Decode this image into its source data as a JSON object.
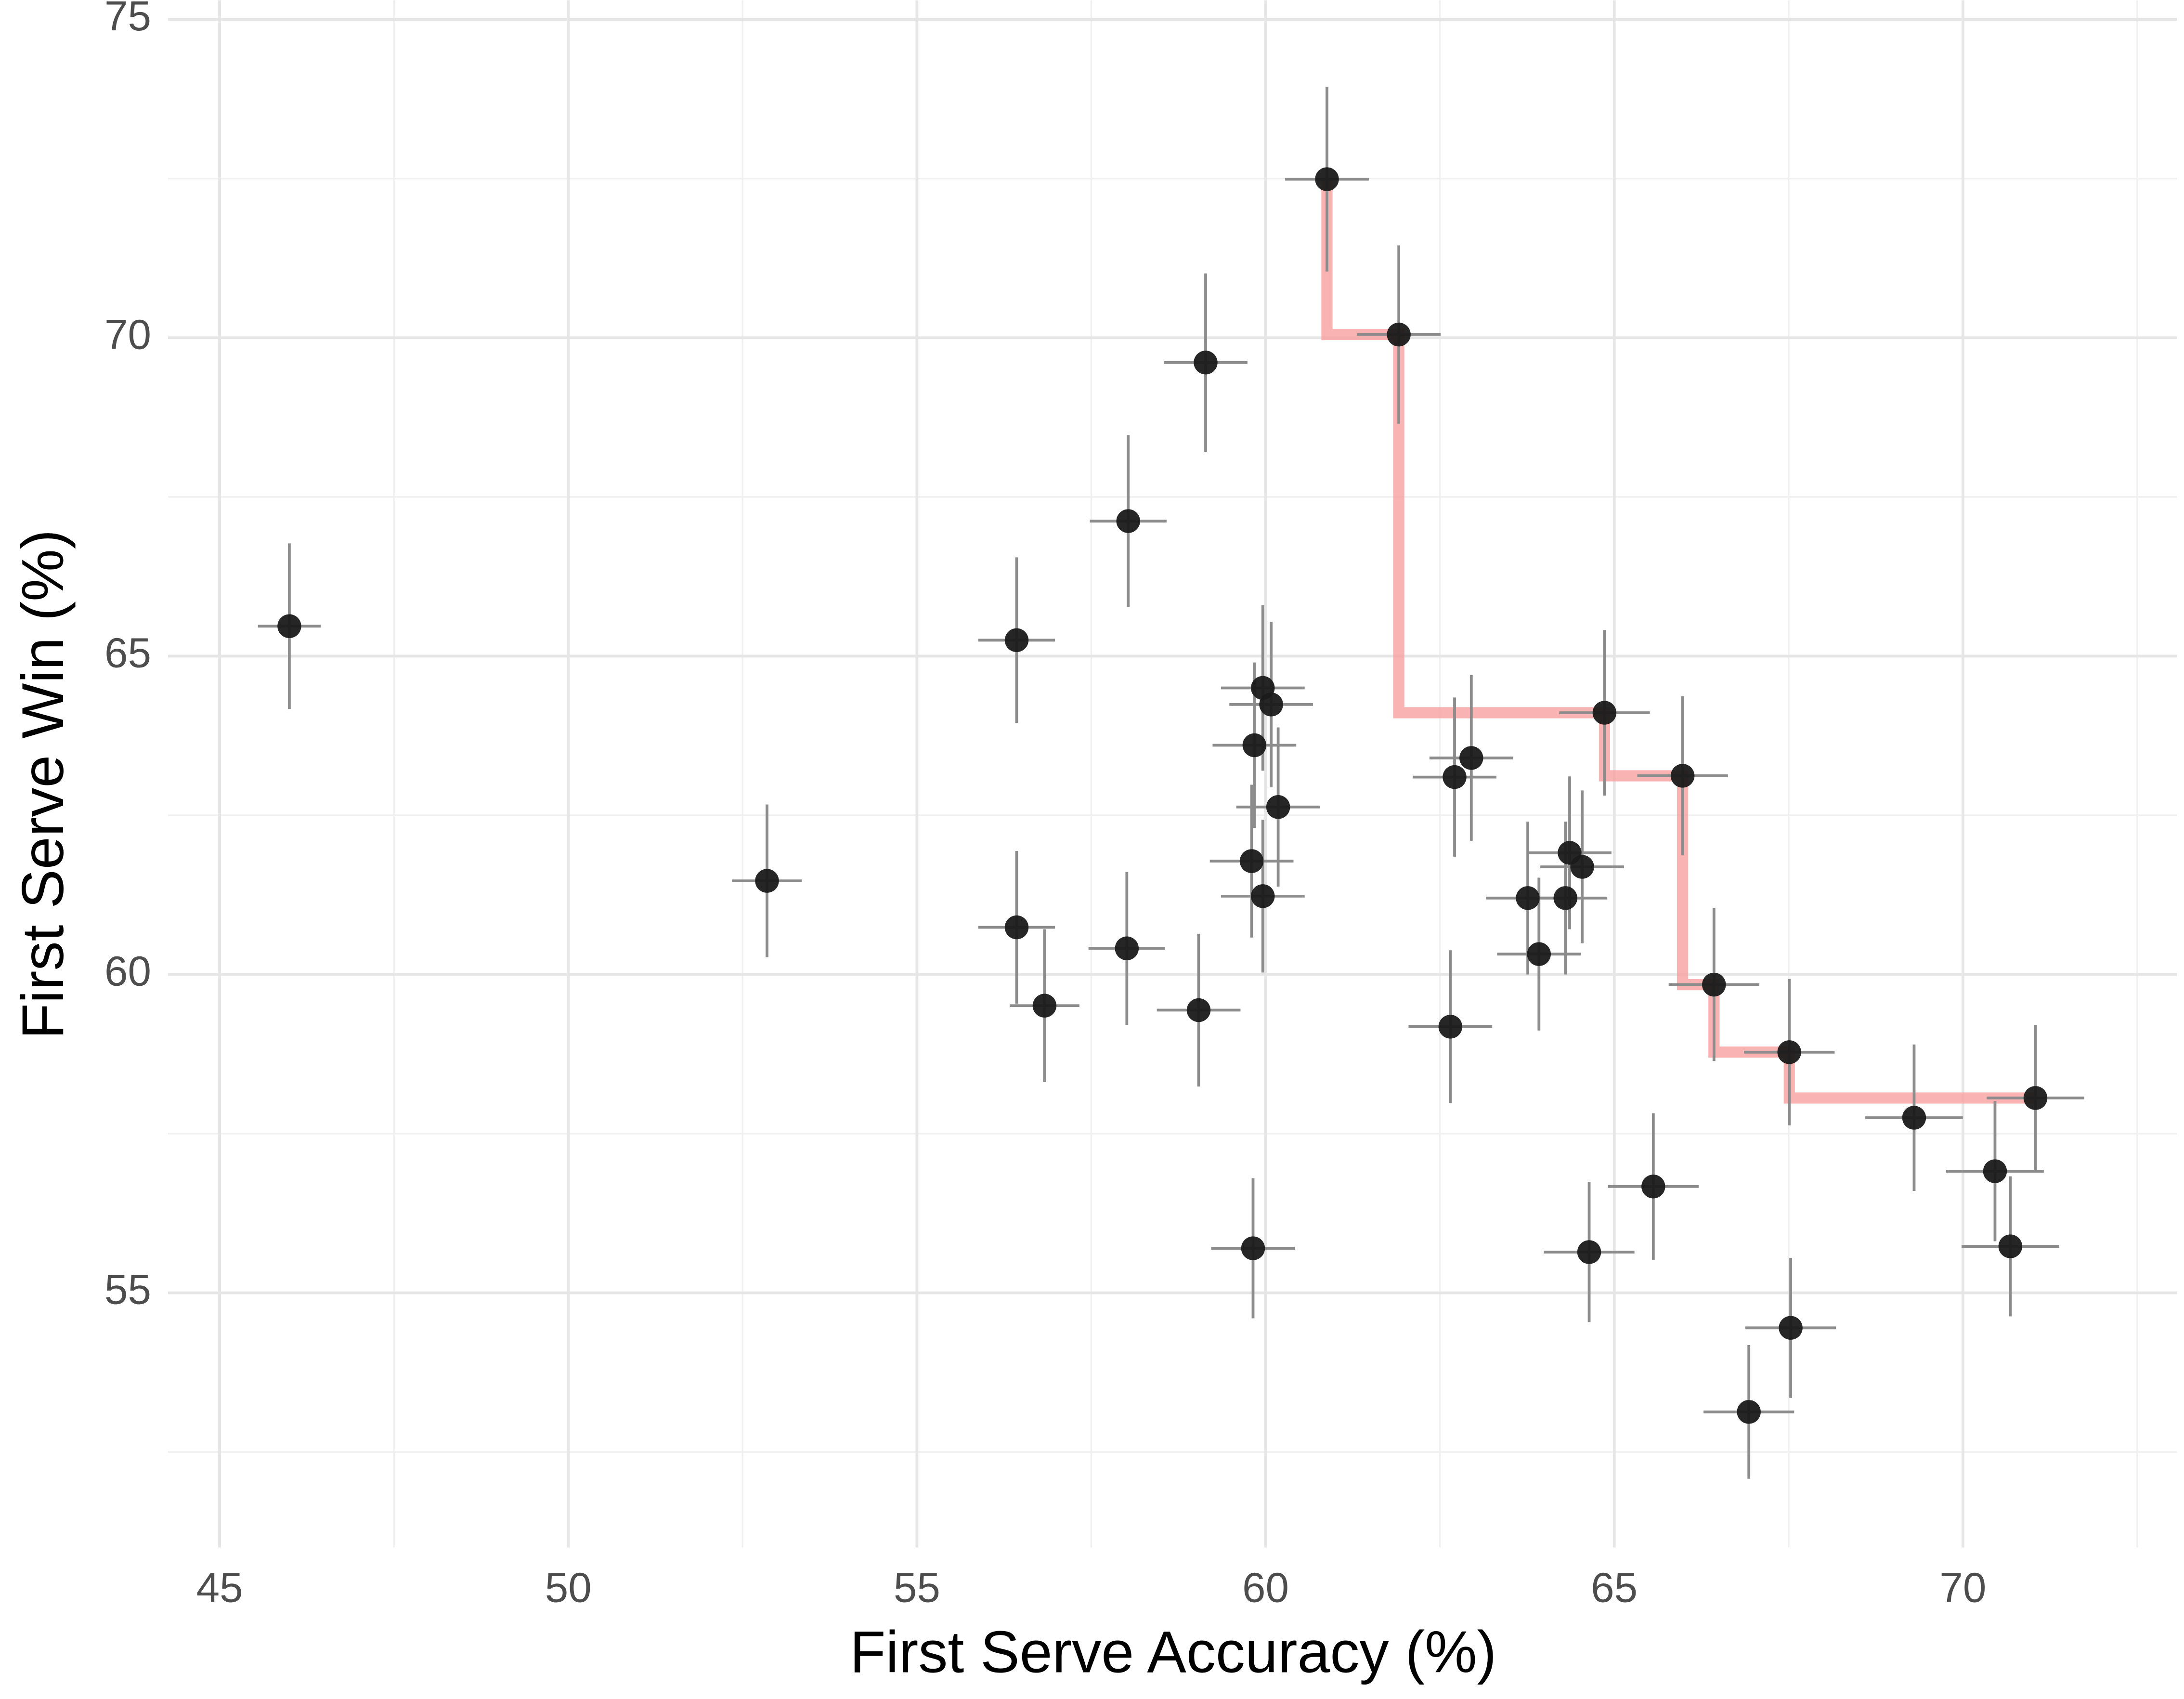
{
  "chart_data": {
    "type": "scatter",
    "x_label": "First Serve Accuracy (%)",
    "y_label": "First Serve Win (%)",
    "xlim": [
      44.26,
      73.07
    ],
    "ylim": [
      51.0,
      75.3
    ],
    "xticks": [
      45,
      50,
      55,
      60,
      65,
      70
    ],
    "yticks": [
      55,
      60,
      65,
      70,
      75
    ],
    "grid": true,
    "color": "#1a1a1a",
    "error_color": "#8c8c8c",
    "x": [
      46.0,
      52.85,
      56.43,
      56.43,
      56.83,
      58.03,
      58.01,
      59.14,
      59.04,
      59.82,
      59.96,
      60.08,
      59.84,
      60.18,
      59.8,
      59.96,
      60.88,
      61.91,
      62.65,
      62.71,
      62.95,
      63.76,
      63.92,
      64.3,
      64.36,
      64.54,
      64.86,
      64.64,
      65.56,
      65.98,
      66.43,
      66.93,
      67.51,
      67.53,
      69.3,
      70.46,
      70.68,
      71.04
    ],
    "y": [
      65.47,
      61.47,
      65.25,
      60.74,
      59.51,
      67.12,
      60.41,
      69.61,
      59.44,
      55.7,
      64.5,
      64.24,
      63.6,
      62.63,
      61.78,
      61.23,
      72.49,
      70.05,
      59.18,
      63.1,
      63.4,
      61.2,
      60.32,
      61.2,
      61.91,
      61.69,
      64.11,
      55.64,
      56.67,
      63.12,
      59.84,
      53.13,
      58.78,
      54.45,
      57.75,
      56.91,
      55.73,
      58.06
    ],
    "xerr": [
      0.45,
      0.5,
      0.55,
      0.55,
      0.5,
      0.55,
      0.55,
      0.6,
      0.6,
      0.6,
      0.6,
      0.6,
      0.6,
      0.6,
      0.6,
      0.6,
      0.6,
      0.6,
      0.6,
      0.6,
      0.6,
      0.6,
      0.6,
      0.6,
      0.6,
      0.6,
      0.65,
      0.65,
      0.65,
      0.65,
      0.65,
      0.65,
      0.65,
      0.65,
      0.7,
      0.7,
      0.7,
      0.7
    ],
    "yerr": [
      1.3,
      1.2,
      1.3,
      1.2,
      1.2,
      1.35,
      1.2,
      1.4,
      1.2,
      1.1,
      1.3,
      1.3,
      1.3,
      1.25,
      1.2,
      1.2,
      1.45,
      1.4,
      1.2,
      1.25,
      1.3,
      1.2,
      1.2,
      1.2,
      1.2,
      1.2,
      1.3,
      1.1,
      1.15,
      1.25,
      1.2,
      1.05,
      1.15,
      1.1,
      1.15,
      1.1,
      1.1,
      1.15
    ],
    "frontier": {
      "color": "#f8a0a0",
      "x": [
        60.88,
        61.91,
        64.86,
        65.98,
        66.43,
        67.51,
        71.04
      ],
      "y": [
        72.49,
        70.05,
        64.11,
        63.12,
        59.84,
        58.78,
        58.06
      ]
    }
  }
}
